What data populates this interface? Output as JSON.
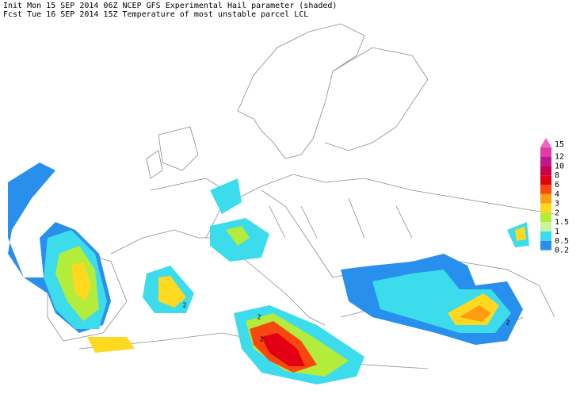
{
  "header": {
    "line1": "Init  Mon 15 SEP 2014 06Z  NCEP GFS Experimental Hail parameter (shaded)",
    "line2": "Fcst Tue 16 SEP 2014 15Z  Temperature of most unstable parcel LCL"
  },
  "legend": {
    "levels": [
      {
        "value": 15,
        "color": "#f064c0"
      },
      {
        "value": 12,
        "color": "#e03ca8"
      },
      {
        "value": 10,
        "color": "#c01890"
      },
      {
        "value": 8,
        "color": "#c8004c"
      },
      {
        "value": 6,
        "color": "#e40014"
      },
      {
        "value": 4,
        "color": "#f84810"
      },
      {
        "value": 3,
        "color": "#ff9c10"
      },
      {
        "value": 2,
        "color": "#ffd820"
      },
      {
        "value": 1.5,
        "color": "#b4ec3c"
      },
      {
        "value": 1,
        "color": "#c8f4a0"
      },
      {
        "value": 0.5,
        "color": "#3cdcec"
      },
      {
        "value": 0.2,
        "color": "#2890ec"
      }
    ]
  },
  "map": {
    "contour_labels": [
      "2",
      "2",
      "2",
      "2"
    ]
  }
}
